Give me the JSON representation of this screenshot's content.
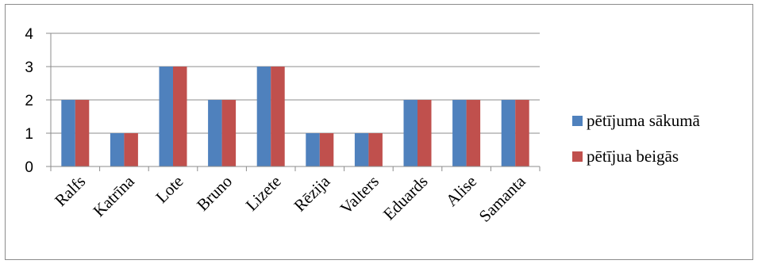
{
  "chart_data": {
    "type": "bar",
    "categories": [
      "Ralfs",
      "Katrīna",
      "Lote",
      "Bruno",
      "Lizete",
      "Rēzija",
      "Valters",
      "Eduards",
      "Alise",
      "Samanta"
    ],
    "series": [
      {
        "name": "pētījuma sākumā",
        "color": "#4f81bd",
        "values": [
          2,
          1,
          3,
          2,
          3,
          1,
          1,
          2,
          2,
          2
        ]
      },
      {
        "name": "pētījua beigās",
        "color": "#c0504d",
        "values": [
          2,
          1,
          3,
          2,
          3,
          1,
          1,
          2,
          2,
          2
        ]
      }
    ],
    "ylim": [
      0,
      4
    ],
    "yticks": [
      0,
      1,
      2,
      3,
      4
    ],
    "grid": true,
    "legend": "right",
    "title": "",
    "xlabel": "",
    "ylabel": ""
  }
}
